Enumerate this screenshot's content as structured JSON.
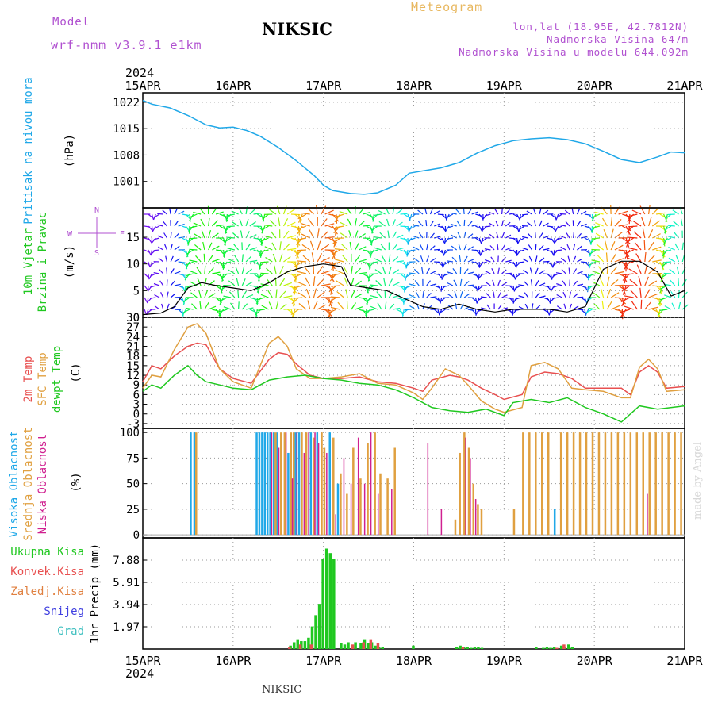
{
  "header": {
    "model_label": "Model",
    "model_name": "wrf-nmm_v3.9.1 e1km",
    "station": "NIKSIC",
    "title": "Meteogram",
    "coords": "lon,lat (18.95E, 42.7812N)",
    "elevation": "Nadmorska Visina 647m",
    "model_elevation": "Nadmorska Visina u modelu 644.092m"
  },
  "footer_label": "NIKSIC",
  "credit": "made by Angel",
  "colors": {
    "pressure": "#20a8e8",
    "temp2m": "#e85050",
    "sfc": "#e0a040",
    "dewpt": "#20c820",
    "high_cloud": "#20a8e8",
    "mid_cloud": "#e0a040",
    "low_cloud": "#d02090",
    "total_precip": "#20c820",
    "conv_precip": "#e85050",
    "frozen_precip": "#e08040",
    "snow": "#4040e0",
    "graupel": "#40c0c0"
  },
  "chart_data": [
    {
      "type": "line",
      "panel": "pressure",
      "ylabel_blue": "Pritisak na nivou mora",
      "ylabel": "(hPa)",
      "yticks": [
        "1001",
        "1008",
        "1015",
        "1022"
      ],
      "ylim": [
        994,
        1024.5
      ],
      "x_days": [
        "15APR",
        "16APR",
        "17APR",
        "18APR",
        "19APR",
        "20APR",
        "21APR"
      ],
      "x_year": "2024",
      "series": [
        {
          "key": "pressure",
          "x": [
            0,
            0.1,
            0.3,
            0.5,
            0.7,
            0.85,
            1.0,
            1.15,
            1.3,
            1.5,
            1.7,
            1.9,
            2.0,
            2.1,
            2.3,
            2.45,
            2.6,
            2.8,
            2.95,
            3.1,
            3.3,
            3.5,
            3.7,
            3.9,
            4.1,
            4.3,
            4.5,
            4.7,
            4.9,
            5.1,
            5.3,
            5.5,
            5.7,
            5.85,
            6.0
          ],
          "values": [
            1022.5,
            1021.5,
            1020.5,
            1018.5,
            1016.0,
            1015.2,
            1015.4,
            1014.5,
            1013.0,
            1010.0,
            1006.5,
            1002.5,
            1000.0,
            998.6,
            997.8,
            997.6,
            998.0,
            1000.0,
            1003.2,
            1003.8,
            1004.6,
            1006.0,
            1008.5,
            1010.5,
            1011.8,
            1012.3,
            1012.6,
            1012.1,
            1011.0,
            1009.0,
            1006.8,
            1006.0,
            1007.5,
            1008.8,
            1008.6
          ]
        }
      ]
    },
    {
      "type": "line",
      "panel": "wind",
      "ylabel_green": "10m Vjetar",
      "ylabel_green2": "Brzina i Pravac",
      "ylabel": "(m/s)",
      "compass": [
        "N",
        "S",
        "W",
        "E"
      ],
      "yticks": [
        "0",
        "5",
        "10",
        "15"
      ],
      "ylim": [
        0,
        20.5
      ],
      "series": [
        {
          "name": "speed",
          "x": [
            0,
            0.2,
            0.35,
            0.5,
            0.65,
            0.8,
            1.0,
            1.2,
            1.4,
            1.6,
            1.8,
            2.0,
            2.2,
            2.3,
            2.5,
            2.7,
            2.9,
            3.1,
            3.3,
            3.5,
            3.7,
            3.9,
            4.1,
            4.3,
            4.5,
            4.7,
            4.9,
            5.1,
            5.3,
            5.5,
            5.7,
            5.85,
            6.0
          ],
          "values": [
            0.5,
            0.8,
            2.0,
            5.5,
            6.5,
            6.0,
            5.5,
            5.0,
            6.5,
            8.5,
            9.5,
            10.0,
            9.5,
            6.0,
            5.5,
            5.0,
            3.5,
            2.0,
            1.5,
            2.5,
            1.5,
            1.0,
            1.5,
            1.5,
            1.5,
            1.0,
            2.0,
            9.0,
            10.5,
            10.5,
            8.5,
            4.0,
            5.0
          ]
        }
      ]
    },
    {
      "type": "line",
      "panel": "temperature",
      "ylabel_red": "2m Temp",
      "ylabel_orange": "SFC Temp",
      "ylabel_green": "dewpt Temp",
      "ylabel": "(C)",
      "yticks": [
        "-3",
        "0",
        "3",
        "6",
        "9",
        "12",
        "15",
        "18",
        "21",
        "24",
        "27",
        "30"
      ],
      "ylim": [
        -4.5,
        30
      ],
      "series": [
        {
          "key": "temp2m",
          "x": [
            0,
            0.1,
            0.2,
            0.35,
            0.5,
            0.6,
            0.7,
            0.85,
            1.0,
            1.2,
            1.4,
            1.5,
            1.6,
            1.7,
            1.85,
            2.0,
            2.2,
            2.4,
            2.6,
            2.8,
            3.0,
            3.1,
            3.2,
            3.4,
            3.5,
            3.6,
            3.75,
            3.9,
            4.0,
            4.2,
            4.3,
            4.45,
            4.6,
            4.75,
            4.9,
            5.1,
            5.3,
            5.4,
            5.5,
            5.6,
            5.7,
            5.8,
            6.0
          ],
          "values": [
            10,
            15,
            14,
            18,
            21,
            22,
            21.5,
            14,
            11,
            9.5,
            17,
            19,
            18.5,
            15.5,
            12,
            11,
            11,
            11.5,
            10,
            9.5,
            8,
            7,
            10.5,
            12,
            11.5,
            10.5,
            8,
            6,
            4.5,
            6,
            11.5,
            13,
            12.5,
            11,
            8,
            8,
            8,
            6,
            13,
            15,
            13,
            8,
            8.5
          ]
        },
        {
          "key": "sfc",
          "x": [
            0,
            0.1,
            0.2,
            0.35,
            0.5,
            0.6,
            0.7,
            0.85,
            1.0,
            1.2,
            1.4,
            1.5,
            1.6,
            1.7,
            1.85,
            2.0,
            2.2,
            2.4,
            2.6,
            2.8,
            3.0,
            3.1,
            3.2,
            3.35,
            3.5,
            3.6,
            3.75,
            3.9,
            4.0,
            4.2,
            4.3,
            4.45,
            4.6,
            4.75,
            4.9,
            5.1,
            5.3,
            5.4,
            5.5,
            5.6,
            5.7,
            5.8,
            6.0
          ],
          "values": [
            8,
            12,
            11.5,
            20,
            27,
            28,
            25,
            14,
            10,
            8,
            22,
            24,
            21,
            14,
            11,
            11,
            11.5,
            12.5,
            9.5,
            9,
            6.5,
            4.5,
            8,
            14,
            12,
            9,
            4,
            1.5,
            0.5,
            2,
            15,
            16,
            14,
            8,
            7.5,
            7,
            5,
            5,
            14.5,
            17,
            14,
            7,
            7.5
          ]
        },
        {
          "key": "dewpt",
          "x": [
            0,
            0.1,
            0.2,
            0.35,
            0.5,
            0.6,
            0.7,
            0.85,
            1.0,
            1.2,
            1.4,
            1.5,
            1.6,
            1.8,
            2.0,
            2.2,
            2.4,
            2.6,
            2.8,
            3.0,
            3.2,
            3.4,
            3.6,
            3.8,
            4.0,
            4.1,
            4.3,
            4.5,
            4.7,
            4.9,
            5.1,
            5.3,
            5.5,
            5.7,
            6.0
          ],
          "values": [
            7,
            9,
            8,
            12,
            15,
            12,
            10,
            9,
            8,
            7.5,
            10.5,
            11,
            11.5,
            12,
            11,
            10.5,
            9.5,
            9,
            7.5,
            5,
            2,
            1,
            0.5,
            1.5,
            -0.5,
            3.5,
            4.5,
            3.5,
            5,
            2,
            0,
            -2.5,
            2.5,
            1.5,
            2.5
          ]
        }
      ]
    },
    {
      "type": "bar",
      "panel": "clouds",
      "ylabel_blue": "Visoka Oblacnost",
      "ylabel_orange": "Srednja Oblacnost",
      "ylabel_pink": "Niska Oblacnost",
      "ylabel": "(%)",
      "yticks": [
        "0",
        "25",
        "50",
        "75",
        "100"
      ],
      "ylim": [
        -3,
        104
      ],
      "series": [
        {
          "key": "high_cloud",
          "x": [
            0.52,
            0.56,
            1.25,
            1.28,
            1.31,
            1.34,
            1.37,
            1.4,
            1.44,
            1.48,
            1.6,
            1.68,
            1.72,
            1.85,
            1.92,
            2.06,
            2.15,
            4.55
          ],
          "values": [
            100,
            100,
            100,
            100,
            100,
            100,
            100,
            100,
            100,
            100,
            80,
            100,
            100,
            100,
            100,
            100,
            50,
            25
          ]
        },
        {
          "key": "mid_cloud",
          "x": [
            0.58,
            1.46,
            1.52,
            1.56,
            1.63,
            1.66,
            1.75,
            1.8,
            1.88,
            1.97,
            2.0,
            2.1,
            2.18,
            2.25,
            2.32,
            2.4,
            2.48,
            2.56,
            2.62,
            2.7,
            2.78,
            3.45,
            3.5,
            3.55,
            3.6,
            3.65,
            3.7,
            3.74,
            4.1,
            4.2,
            4.27,
            4.34,
            4.41,
            4.48,
            4.62,
            4.69,
            4.76,
            4.83,
            4.9,
            4.97,
            5.04,
            5.11,
            5.18,
            5.25,
            5.32,
            5.39,
            5.46,
            5.53,
            5.6,
            5.67,
            5.74,
            5.81,
            5.88,
            5.95
          ],
          "values": [
            100,
            100,
            100,
            100,
            100,
            100,
            100,
            100,
            95,
            100,
            85,
            95,
            60,
            40,
            85,
            55,
            90,
            100,
            60,
            55,
            85,
            15,
            80,
            100,
            85,
            50,
            30,
            25,
            25,
            100,
            100,
            100,
            100,
            100,
            100,
            100,
            100,
            100,
            100,
            100,
            100,
            100,
            100,
            100,
            100,
            100,
            100,
            100,
            100,
            100,
            100,
            100,
            100,
            100
          ]
        },
        {
          "key": "low_cloud",
          "x": [
            1.42,
            1.5,
            1.58,
            1.65,
            1.7,
            1.78,
            1.83,
            1.9,
            1.94,
            2.03,
            2.13,
            2.22,
            2.3,
            2.38,
            2.45,
            2.52,
            2.6,
            2.75,
            3.15,
            3.3,
            3.57,
            3.62,
            3.68,
            5.58
          ],
          "values": [
            100,
            85,
            100,
            55,
            100,
            80,
            100,
            100,
            90,
            80,
            20,
            75,
            50,
            95,
            50,
            100,
            40,
            45,
            90,
            25,
            95,
            75,
            35,
            40
          ]
        }
      ]
    },
    {
      "type": "bar",
      "panel": "precip",
      "ylabel": "1hr Precip (mm)",
      "legend": [
        "Ukupna Kisa",
        "Konvek.Kisa",
        "Zaledj.Kisa",
        "Snijeg",
        "Grad"
      ],
      "yticks": [
        "1.97",
        "3.94",
        "5.91",
        "7.88"
      ],
      "ylim": [
        0,
        9.85
      ],
      "series": [
        {
          "key": "total_precip",
          "x": [
            1.62,
            1.66,
            1.7,
            1.74,
            1.78,
            1.82,
            1.86,
            1.9,
            1.94,
            1.98,
            2.02,
            2.06,
            2.1,
            2.18,
            2.22,
            2.26,
            2.34,
            2.4,
            2.44,
            2.48,
            2.52,
            2.56,
            2.6,
            2.64,
            2.98,
            3.46,
            3.5,
            3.54,
            3.58,
            3.62,
            3.66,
            3.7,
            3.74,
            4.34,
            4.42,
            4.46,
            4.5,
            4.54,
            4.62,
            4.66,
            4.7,
            4.74
          ],
          "values": [
            0.3,
            0.6,
            0.8,
            0.7,
            0.7,
            1.0,
            2.0,
            3.0,
            4.0,
            8.0,
            8.9,
            8.5,
            8.0,
            0.5,
            0.4,
            0.6,
            0.6,
            0.5,
            0.8,
            0.5,
            0.6,
            0.3,
            0.2,
            0.2,
            0.3,
            0.2,
            0.3,
            0.2,
            0.2,
            0.1,
            0.2,
            0.2,
            0.1,
            0.2,
            0.1,
            0.2,
            0.1,
            0.2,
            0.3,
            0.2,
            0.4,
            0.2
          ]
        },
        {
          "key": "conv_precip",
          "x": [
            1.6,
            1.72,
            1.84,
            2.3,
            2.42,
            2.5,
            2.58,
            3.52,
            4.56,
            4.64
          ],
          "values": [
            0.2,
            0.4,
            0.4,
            0.4,
            0.6,
            0.8,
            0.5,
            0.2,
            0.1,
            0.4
          ]
        }
      ]
    }
  ]
}
